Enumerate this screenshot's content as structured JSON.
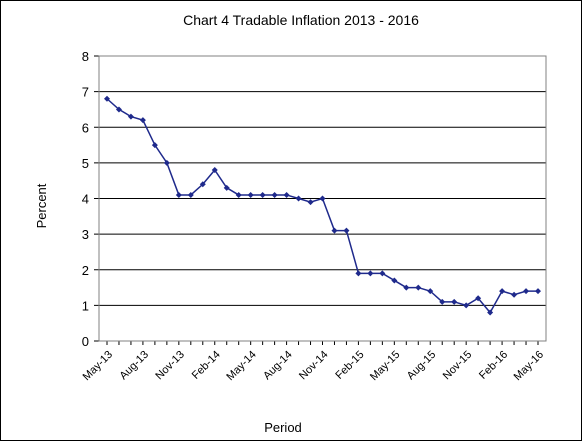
{
  "chart_data": {
    "type": "line",
    "title": "Chart 4 Tradable Inflation 2013 - 2016",
    "xlabel": "Period",
    "ylabel": "Percent",
    "ylim": [
      0,
      8
    ],
    "yticks": [
      0,
      1,
      2,
      3,
      4,
      5,
      6,
      7,
      8
    ],
    "grid": "horizontal",
    "legend": "none",
    "x_tick_labels": [
      "May-13",
      "Aug-13",
      "Nov-13",
      "Feb-14",
      "May-14",
      "Aug-14",
      "Nov-14",
      "Feb-15",
      "May-15",
      "Aug-15",
      "Nov-15",
      "Feb-16",
      "May-16"
    ],
    "x": [
      "May-13",
      "Jun-13",
      "Jul-13",
      "Aug-13",
      "Sep-13",
      "Oct-13",
      "Nov-13",
      "Dec-13",
      "Jan-14",
      "Feb-14",
      "Mar-14",
      "Apr-14",
      "May-14",
      "Jun-14",
      "Jul-14",
      "Aug-14",
      "Sep-14",
      "Oct-14",
      "Nov-14",
      "Dec-14",
      "Jan-15",
      "Feb-15",
      "Mar-15",
      "Apr-15",
      "May-15",
      "Jun-15",
      "Jul-15",
      "Aug-15",
      "Sep-15",
      "Oct-15",
      "Nov-15",
      "Dec-15",
      "Jan-16",
      "Feb-16",
      "Mar-16",
      "Apr-16",
      "May-16"
    ],
    "series": [
      {
        "color": "#1f2a8c",
        "values": [
          6.8,
          6.5,
          6.3,
          6.2,
          5.5,
          5.0,
          4.1,
          4.1,
          4.4,
          4.8,
          4.3,
          4.1,
          4.1,
          4.1,
          4.1,
          4.1,
          4.0,
          3.9,
          4.0,
          3.1,
          3.1,
          1.9,
          1.9,
          1.9,
          1.7,
          1.5,
          1.5,
          1.4,
          1.1,
          1.1,
          1.0,
          1.2,
          0.8,
          1.4,
          1.3,
          1.4,
          1.4
        ]
      }
    ]
  }
}
